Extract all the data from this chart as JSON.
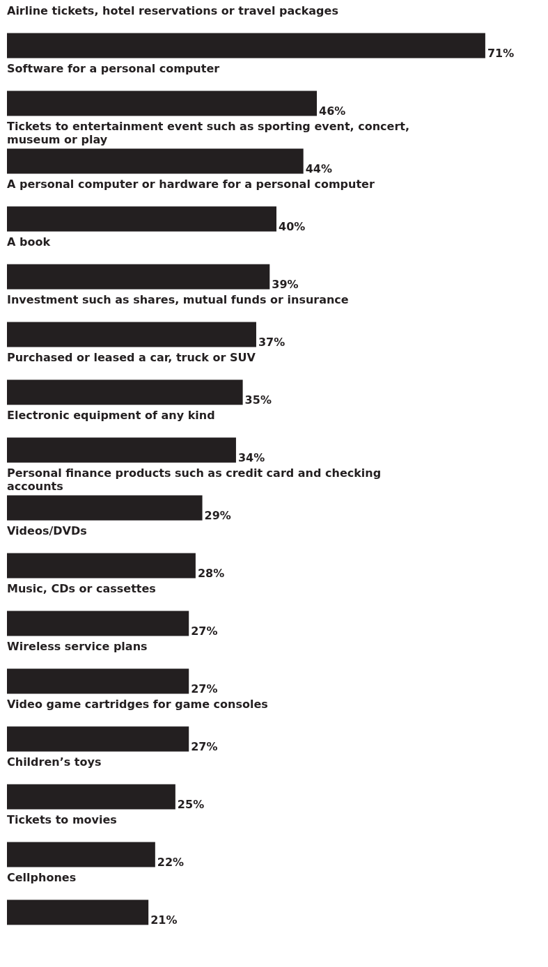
{
  "chart_data": {
    "type": "bar",
    "orientation": "horizontal",
    "categories": [
      "Airline tickets, hotel reservations or travel packages",
      "Software for a personal computer",
      "Tickets to entertainment event such as sporting event, concert, museum or play",
      "A personal computer or hardware for a personal computer",
      "A book",
      "Investment such as shares, mutual funds or insurance",
      "Purchased or leased a car, truck or SUV",
      "Electronic equipment of any kind",
      "Personal finance products such as credit card and checking accounts",
      "Videos/DVDs",
      "Music, CDs or cassettes",
      "Wireless service plans",
      "Video game cartridges for game consoles",
      "Children’s toys",
      "Tickets to movies",
      "Cellphones"
    ],
    "values": [
      71,
      46,
      44,
      40,
      39,
      37,
      35,
      34,
      29,
      28,
      27,
      27,
      27,
      25,
      22,
      21
    ],
    "value_labels": [
      "71%",
      "46%",
      "44%",
      "40%",
      "39%",
      "37%",
      "35%",
      "34%",
      "29%",
      "28%",
      "27%",
      "27%",
      "27%",
      "25%",
      "22%",
      "21%"
    ],
    "color": "#231f20"
  }
}
